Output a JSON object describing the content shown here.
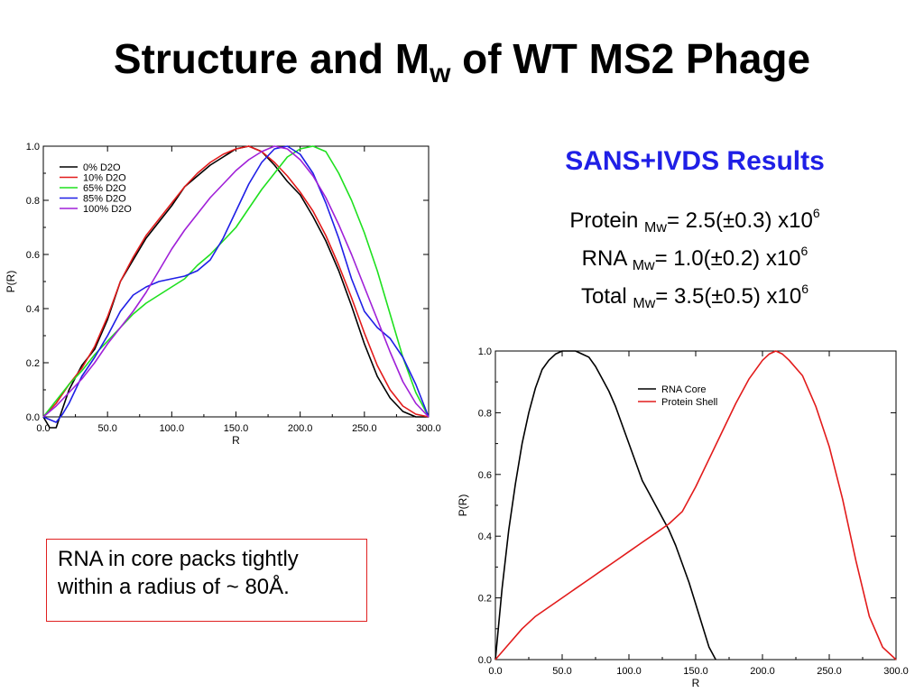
{
  "title": {
    "main": "Structure and M",
    "sub": "w",
    "rest": " of WT MS2 Phage"
  },
  "results": {
    "heading": "SANS+IVDS Results",
    "lines": [
      {
        "label": "Protein",
        "sub": "Mw",
        "value": "= 2.5(±0.3) x10",
        "exp": "6"
      },
      {
        "label": "RNA",
        "sub": "Mw",
        "value": "= 1.0(±0.2) x10",
        "exp": "6"
      },
      {
        "label": "Total",
        "sub": "Mw",
        "value": "= 3.5(±0.5) x10",
        "exp": "6"
      }
    ]
  },
  "note": {
    "line1": "RNA in core packs tightly",
    "line2": "within a radius of ~ 80Å."
  },
  "chart_data": [
    {
      "type": "line",
      "xlabel": "R",
      "ylabel": "P(R)",
      "xlim": [
        0,
        300
      ],
      "ylim": [
        0,
        1
      ],
      "xticks": [
        "0.0",
        "50.0",
        "100.0",
        "150.0",
        "200.0",
        "250.0",
        "300.0"
      ],
      "yticks": [
        "0.0",
        "0.2",
        "0.4",
        "0.6",
        "0.8",
        "1.0"
      ],
      "legend_position": "top-left",
      "series": [
        {
          "name": "0% D2O",
          "color": "#000000",
          "x": [
            0,
            5,
            10,
            15,
            20,
            30,
            40,
            50,
            60,
            70,
            80,
            90,
            100,
            110,
            120,
            130,
            140,
            150,
            160,
            170,
            180,
            190,
            200,
            210,
            220,
            230,
            240,
            250,
            260,
            270,
            280,
            290,
            300
          ],
          "y": [
            0.0,
            -0.04,
            -0.04,
            0.03,
            0.1,
            0.19,
            0.25,
            0.36,
            0.5,
            0.58,
            0.66,
            0.72,
            0.78,
            0.85,
            0.89,
            0.93,
            0.96,
            0.99,
            1.0,
            0.98,
            0.93,
            0.87,
            0.82,
            0.74,
            0.65,
            0.54,
            0.41,
            0.27,
            0.15,
            0.07,
            0.02,
            0.0,
            0.0
          ]
        },
        {
          "name": "10% D2O",
          "color": "#e21b1b",
          "x": [
            0,
            10,
            20,
            30,
            40,
            50,
            60,
            70,
            80,
            90,
            100,
            110,
            120,
            130,
            140,
            150,
            160,
            170,
            180,
            190,
            200,
            210,
            220,
            230,
            240,
            250,
            260,
            270,
            280,
            290,
            300
          ],
          "y": [
            0.0,
            0.05,
            0.12,
            0.18,
            0.26,
            0.37,
            0.5,
            0.59,
            0.67,
            0.73,
            0.79,
            0.85,
            0.9,
            0.94,
            0.97,
            0.99,
            1.0,
            0.98,
            0.94,
            0.89,
            0.83,
            0.76,
            0.67,
            0.56,
            0.44,
            0.31,
            0.19,
            0.1,
            0.04,
            0.01,
            0.0
          ]
        },
        {
          "name": "65% D2O",
          "color": "#1fe01f",
          "x": [
            0,
            10,
            20,
            30,
            40,
            50,
            60,
            70,
            80,
            90,
            100,
            110,
            120,
            130,
            140,
            150,
            160,
            170,
            180,
            190,
            200,
            210,
            220,
            230,
            240,
            250,
            260,
            270,
            280,
            290,
            300
          ],
          "y": [
            0.0,
            0.06,
            0.12,
            0.17,
            0.23,
            0.28,
            0.33,
            0.38,
            0.42,
            0.45,
            0.48,
            0.51,
            0.56,
            0.6,
            0.65,
            0.7,
            0.77,
            0.84,
            0.9,
            0.96,
            0.99,
            1.0,
            0.98,
            0.9,
            0.8,
            0.68,
            0.54,
            0.38,
            0.22,
            0.09,
            0.0
          ]
        },
        {
          "name": "85% D2O",
          "color": "#1f1fe6",
          "x": [
            0,
            5,
            10,
            15,
            20,
            30,
            40,
            50,
            60,
            70,
            80,
            90,
            100,
            110,
            120,
            130,
            140,
            150,
            160,
            170,
            180,
            190,
            200,
            210,
            220,
            230,
            240,
            250,
            260,
            270,
            280,
            290,
            300
          ],
          "y": [
            0.0,
            -0.01,
            -0.02,
            0.01,
            0.05,
            0.15,
            0.22,
            0.3,
            0.39,
            0.45,
            0.48,
            0.5,
            0.51,
            0.52,
            0.54,
            0.58,
            0.66,
            0.76,
            0.86,
            0.94,
            0.99,
            1.0,
            0.97,
            0.9,
            0.79,
            0.66,
            0.51,
            0.39,
            0.33,
            0.29,
            0.22,
            0.12,
            0.0
          ]
        },
        {
          "name": "100% D2O",
          "color": "#a020d8",
          "x": [
            0,
            10,
            20,
            30,
            40,
            50,
            60,
            70,
            80,
            90,
            100,
            110,
            120,
            130,
            140,
            150,
            160,
            170,
            180,
            190,
            200,
            210,
            220,
            230,
            240,
            250,
            260,
            270,
            280,
            290,
            300
          ],
          "y": [
            0.0,
            0.04,
            0.09,
            0.14,
            0.2,
            0.27,
            0.33,
            0.39,
            0.46,
            0.54,
            0.62,
            0.69,
            0.75,
            0.81,
            0.86,
            0.91,
            0.95,
            0.98,
            1.0,
            0.99,
            0.95,
            0.89,
            0.81,
            0.71,
            0.6,
            0.48,
            0.36,
            0.24,
            0.13,
            0.05,
            0.0
          ]
        }
      ]
    },
    {
      "type": "line",
      "xlabel": "R",
      "ylabel": "P(R)",
      "xlim": [
        0,
        300
      ],
      "ylim": [
        0,
        1
      ],
      "xticks": [
        "0.0",
        "50.0",
        "100.0",
        "150.0",
        "200.0",
        "250.0",
        "300.0"
      ],
      "yticks": [
        "0.0",
        "0.2",
        "0.4",
        "0.6",
        "0.8",
        "1.0"
      ],
      "legend_position": "top-center",
      "series": [
        {
          "name": "RNA Core",
          "color": "#000000",
          "x": [
            0,
            5,
            10,
            15,
            20,
            25,
            30,
            35,
            40,
            45,
            50,
            55,
            60,
            65,
            70,
            75,
            80,
            85,
            90,
            95,
            100,
            105,
            110,
            115,
            120,
            125,
            130,
            135,
            140,
            145,
            150,
            155,
            160,
            165
          ],
          "y": [
            0.0,
            0.23,
            0.42,
            0.57,
            0.7,
            0.8,
            0.88,
            0.94,
            0.97,
            0.99,
            1.0,
            1.0,
            1.0,
            0.99,
            0.98,
            0.95,
            0.91,
            0.87,
            0.82,
            0.76,
            0.7,
            0.64,
            0.58,
            0.54,
            0.5,
            0.46,
            0.42,
            0.37,
            0.31,
            0.25,
            0.18,
            0.11,
            0.04,
            0.0
          ]
        },
        {
          "name": "Protein Shell",
          "color": "#e21b1b",
          "x": [
            0,
            10,
            20,
            30,
            40,
            50,
            60,
            70,
            80,
            90,
            100,
            110,
            120,
            130,
            140,
            150,
            160,
            170,
            180,
            190,
            200,
            205,
            210,
            215,
            220,
            230,
            240,
            250,
            260,
            270,
            280,
            290,
            300
          ],
          "y": [
            0.0,
            0.05,
            0.1,
            0.14,
            0.17,
            0.2,
            0.23,
            0.26,
            0.29,
            0.32,
            0.35,
            0.38,
            0.41,
            0.44,
            0.48,
            0.56,
            0.65,
            0.74,
            0.83,
            0.91,
            0.97,
            0.99,
            1.0,
            0.99,
            0.97,
            0.92,
            0.82,
            0.69,
            0.52,
            0.32,
            0.14,
            0.04,
            0.0
          ]
        }
      ]
    }
  ]
}
